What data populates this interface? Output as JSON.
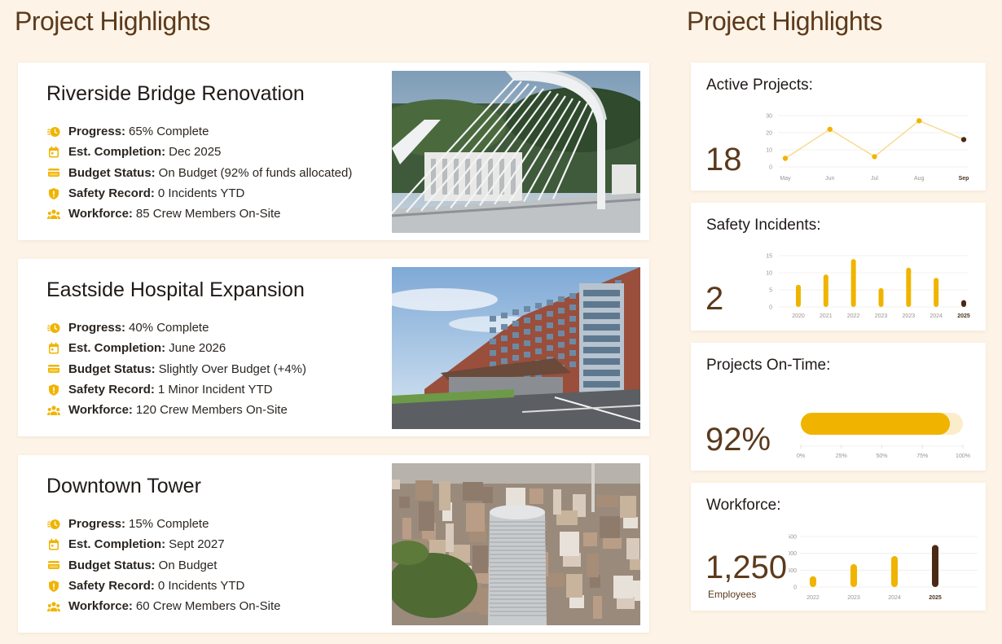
{
  "headings": {
    "left": "Project Highlights",
    "right": "Project Highlights"
  },
  "field_labels": {
    "progress": "Progress:",
    "completion": "Est. Completion:",
    "budget": "Budget Status:",
    "safety": "Safety Record:",
    "workforce": "Workforce:"
  },
  "projects": [
    {
      "title": "Riverside Bridge Renovation",
      "progress": "65% Complete",
      "completion": "Dec 2025",
      "budget": "On Budget (92% of funds allocated)",
      "safety": "0 Incidents YTD",
      "workforce": "85 Crew Members On-Site"
    },
    {
      "title": "Eastside Hospital Expansion",
      "progress": "40% Complete",
      "completion": "June 2026",
      "budget": "Slightly Over Budget (+4%)",
      "safety": "1 Minor Incident YTD",
      "workforce": "120 Crew Members On-Site"
    },
    {
      "title": "Downtown Tower",
      "progress": "15% Complete",
      "completion": "Sept 2027",
      "budget": "On Budget",
      "safety": "0 Incidents YTD",
      "workforce": "60 Crew Members On-Site"
    }
  ],
  "icons": [
    "progress-clock-icon",
    "calendar-icon",
    "wallet-icon",
    "shield-icon",
    "crew-icon"
  ],
  "colors": {
    "accent": "#f0b400",
    "accent_light": "#f8d98a",
    "brown": "#5b3a1c",
    "dark_brown": "#4a2a14",
    "background": "#fdf3e6"
  },
  "metrics": {
    "active": {
      "title": "Active Projects:",
      "value": "18"
    },
    "safety": {
      "title": "Safety Incidents:",
      "value": "2"
    },
    "ontime": {
      "title": "Projects On-Time:",
      "value": "92%"
    },
    "workforce": {
      "title": "Workforce:",
      "value": "1,250",
      "sub": "Employees"
    }
  },
  "chart_data": [
    {
      "type": "line",
      "categories": [
        "May",
        "Jun",
        "Jul",
        "Aug",
        "Sep"
      ],
      "values": [
        5,
        22,
        6,
        27,
        16
      ],
      "ylim": [
        0,
        30
      ],
      "yticks": [
        "0",
        "10",
        "20",
        "30"
      ]
    },
    {
      "type": "bar",
      "categories": [
        "2020",
        "2021",
        "2022",
        "2023",
        "2023",
        "2024",
        "2025"
      ],
      "values": [
        6.5,
        9.5,
        14,
        5.5,
        11.5,
        8.5,
        2
      ],
      "ylim": [
        0,
        15
      ],
      "yticks": [
        "0",
        "5",
        "10",
        "15"
      ]
    },
    {
      "type": "bar",
      "orientation": "horizontal",
      "values": [
        92
      ],
      "xlim": [
        0,
        100
      ],
      "xticks": [
        "0%",
        "25%",
        "50%",
        "75%",
        "100%"
      ]
    },
    {
      "type": "bar",
      "categories": [
        "2022",
        "2023",
        "2024",
        "2025"
      ],
      "values": [
        320,
        680,
        920,
        1250
      ],
      "ylim": [
        0,
        1500
      ],
      "yticks": [
        "0",
        "500",
        "1,000",
        "1,500"
      ]
    }
  ]
}
